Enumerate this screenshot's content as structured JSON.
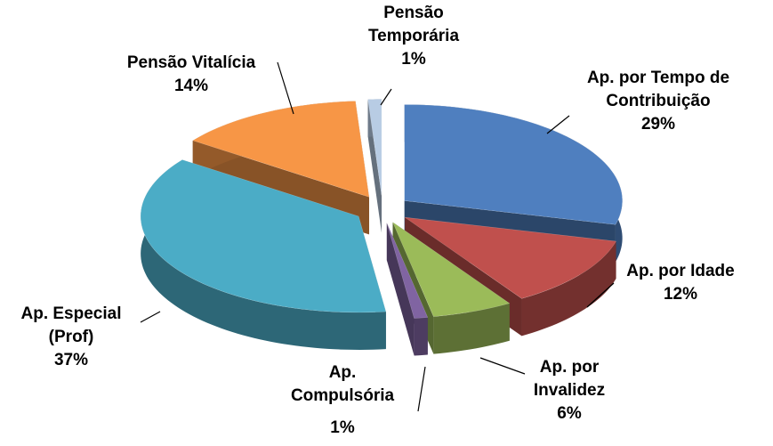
{
  "chart_data": {
    "type": "pie",
    "categories": [
      "Ap. por Tempo de Contribuição",
      "Ap. por Idade",
      "Ap. por Invalidez",
      "Ap. Compulsória",
      "Ap. Especial (Prof)",
      "Pensão Vitalícia",
      "Pensão Temporária"
    ],
    "values": [
      29,
      12,
      6,
      1,
      37,
      14,
      1
    ],
    "value_labels": [
      "29%",
      "12%",
      "6%",
      "1%",
      "37%",
      "14%",
      "1%"
    ],
    "colors": [
      "#4f7fbf",
      "#c0504d",
      "#9bbb59",
      "#8064a2",
      "#4bacc6",
      "#f79646",
      "#b8cce4"
    ]
  }
}
